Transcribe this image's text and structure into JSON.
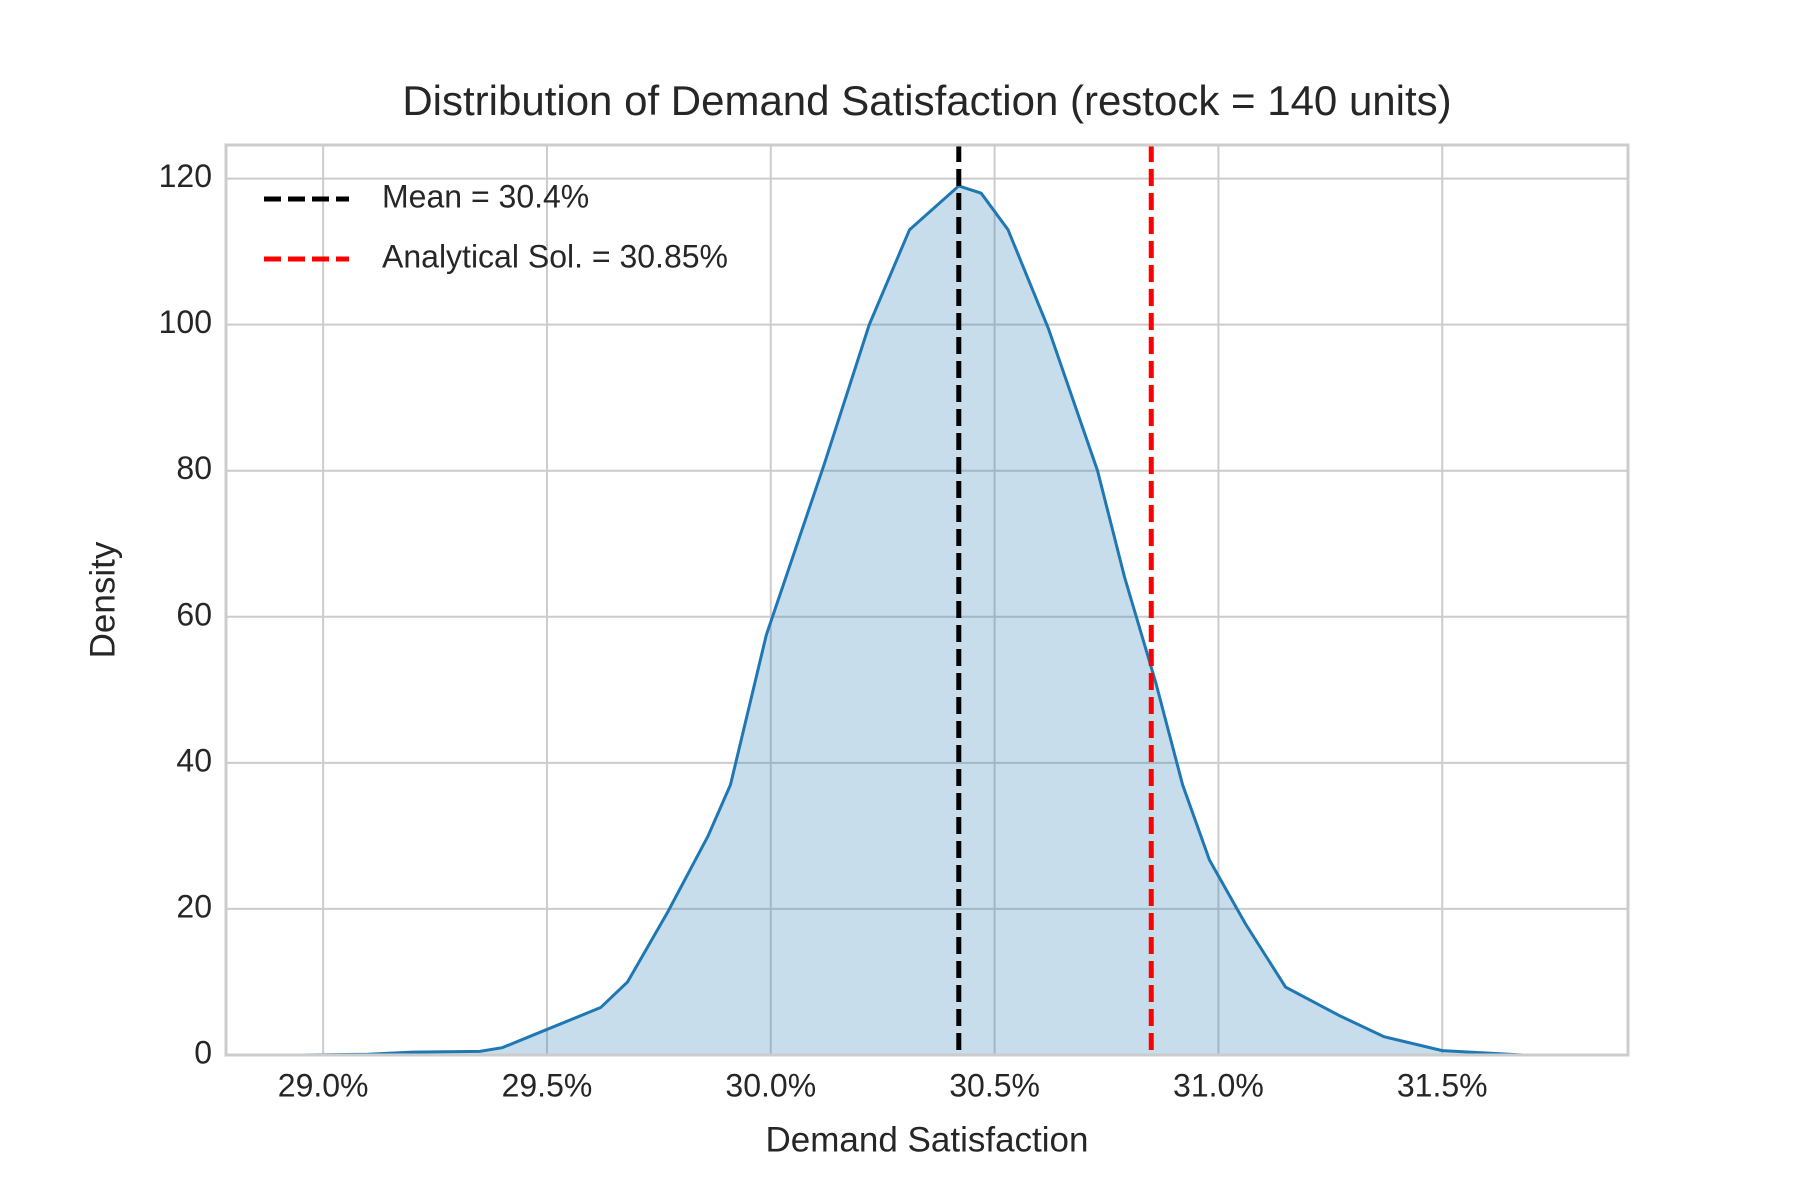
{
  "chart_data": {
    "type": "area",
    "title": "Distribution of Demand Satisfaction (restock = 140 units)",
    "x_label": "Demand Satisfaction",
    "y_label": "Density",
    "x": [
      28.95,
      29.1,
      29.2,
      29.35,
      29.4,
      29.5,
      29.62,
      29.68,
      29.77,
      29.86,
      29.91,
      29.99,
      30.12,
      30.22,
      30.31,
      30.42,
      30.47,
      30.53,
      30.62,
      30.73,
      30.79,
      30.86,
      30.92,
      30.98,
      31.06,
      31.15,
      31.27,
      31.37,
      31.5,
      31.68
    ],
    "values": [
      0,
      0.1,
      0.4,
      0.5,
      1,
      3.5,
      6.5,
      10,
      19.6,
      30,
      37,
      57.5,
      81,
      100,
      113,
      119,
      118,
      113,
      99.5,
      80,
      65.5,
      51,
      37,
      26.7,
      18,
      9.3,
      5.4,
      2.5,
      0.6,
      0
    ],
    "color": "#1f77b4",
    "reference_lines": [
      {
        "label": "Mean = 30.4%",
        "x": 30.42,
        "color": "#000000"
      },
      {
        "label": "Analytical Sol. = 30.85%",
        "x": 30.85,
        "color": "#ff0000"
      }
    ],
    "legend": "upper left",
    "xlim": [
      28.783,
      31.915
    ],
    "xticks": [
      {
        "value": 29.0,
        "label": "29.0%"
      },
      {
        "value": 29.5,
        "label": "29.5%"
      },
      {
        "value": 30.0,
        "label": "30.0%"
      },
      {
        "value": 30.5,
        "label": "30.5%"
      },
      {
        "value": 31.0,
        "label": "31.0%"
      },
      {
        "value": 31.5,
        "label": "31.5%"
      }
    ],
    "ylim": [
      0,
      124.6
    ],
    "yticks": [
      0,
      20,
      40,
      60,
      80,
      100,
      120
    ],
    "grid": true
  }
}
